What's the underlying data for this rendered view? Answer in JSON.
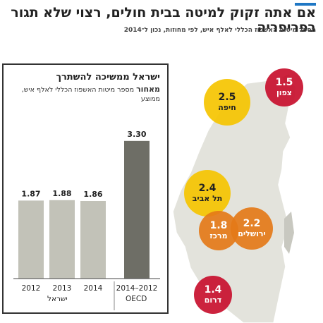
{
  "title": "אם אתה זקוק למיטה בבית חולים, רצוי שלא תגור בפריפריה",
  "subtitle": "מספר מיטות האשפוז הכללי לאלף איש, לפי מחוזות, נכון ל־2014",
  "panel": {
    "title": "ישראל ממשיכה להשתרך",
    "subtitle_bold": "מאחור",
    "subtitle_rest": " מספר מיטות האשפוז הכללי לאלף איש, ממוצע",
    "group_israel": "ישראל",
    "group_oecd": "OECD"
  },
  "chart_data": [
    {
      "type": "bar",
      "title": "ישראל ממשיכה להשתרך מאחור",
      "subtitle": "מספר מיטות האשפוז הכללי לאלף איש, ממוצע",
      "categories": [
        "2012",
        "2013",
        "2014",
        "2014–2012"
      ],
      "groups": [
        "ישראל",
        "ישראל",
        "ישראל",
        "OECD"
      ],
      "values": [
        1.87,
        1.88,
        1.86,
        3.3
      ],
      "value_labels": [
        "1.87",
        "1.88",
        "1.86",
        "3.30"
      ],
      "colors": [
        "#c2c2b8",
        "#c2c2b8",
        "#c2c2b8",
        "#6e6e66"
      ],
      "ylim": [
        0,
        3.5
      ],
      "grid": false
    },
    {
      "type": "map",
      "title": "מספר מיטות האשפוז הכללי לאלף איש, לפי מחוזות",
      "regions": [
        {
          "name": "צפון",
          "value": 1.5,
          "label": "1.5",
          "color": "#c8102e"
        },
        {
          "name": "חיפה",
          "value": 2.5,
          "label": "2.5",
          "color": "#f5c400"
        },
        {
          "name": "תל אביב",
          "value": 2.4,
          "label": "2.4",
          "color": "#f5c400"
        },
        {
          "name": "מרכז",
          "value": 1.8,
          "label": "1.8",
          "color": "#e47a18"
        },
        {
          "name": "ירושלים",
          "value": 2.2,
          "label": "2.2",
          "color": "#e47a18"
        },
        {
          "name": "דרום",
          "value": 1.4,
          "label": "1.4",
          "color": "#c8102e"
        }
      ]
    }
  ]
}
